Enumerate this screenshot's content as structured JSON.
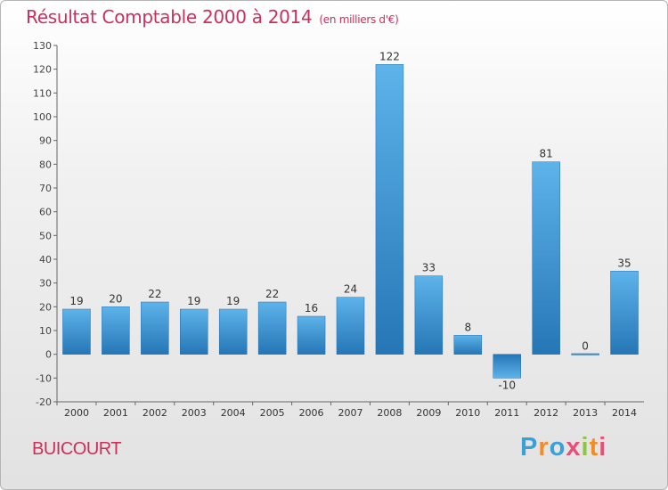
{
  "header": {
    "title": "Résultat Comptable 2000 à 2014",
    "subtitle": "(en milliers d'€)"
  },
  "footer": {
    "commune": "BUICOURT",
    "logo_text": "Proxiti"
  },
  "colors": {
    "accent": "#cc2f5b",
    "bar_light": "#5bb0e8",
    "bar_dark": "#2878b8"
  },
  "chart_data": {
    "type": "bar",
    "categories": [
      "2000",
      "2001",
      "2002",
      "2003",
      "2004",
      "2005",
      "2006",
      "2007",
      "2008",
      "2009",
      "2010",
      "2011",
      "2012",
      "2013",
      "2014"
    ],
    "values": [
      19,
      20,
      22,
      19,
      19,
      22,
      16,
      24,
      122,
      33,
      8,
      -10,
      81,
      0,
      35
    ],
    "ylim": [
      -20,
      130
    ],
    "yticks": [
      -20,
      -10,
      0,
      10,
      20,
      30,
      40,
      50,
      60,
      70,
      80,
      90,
      100,
      110,
      120,
      130
    ],
    "grid": false,
    "data_labels": true
  }
}
